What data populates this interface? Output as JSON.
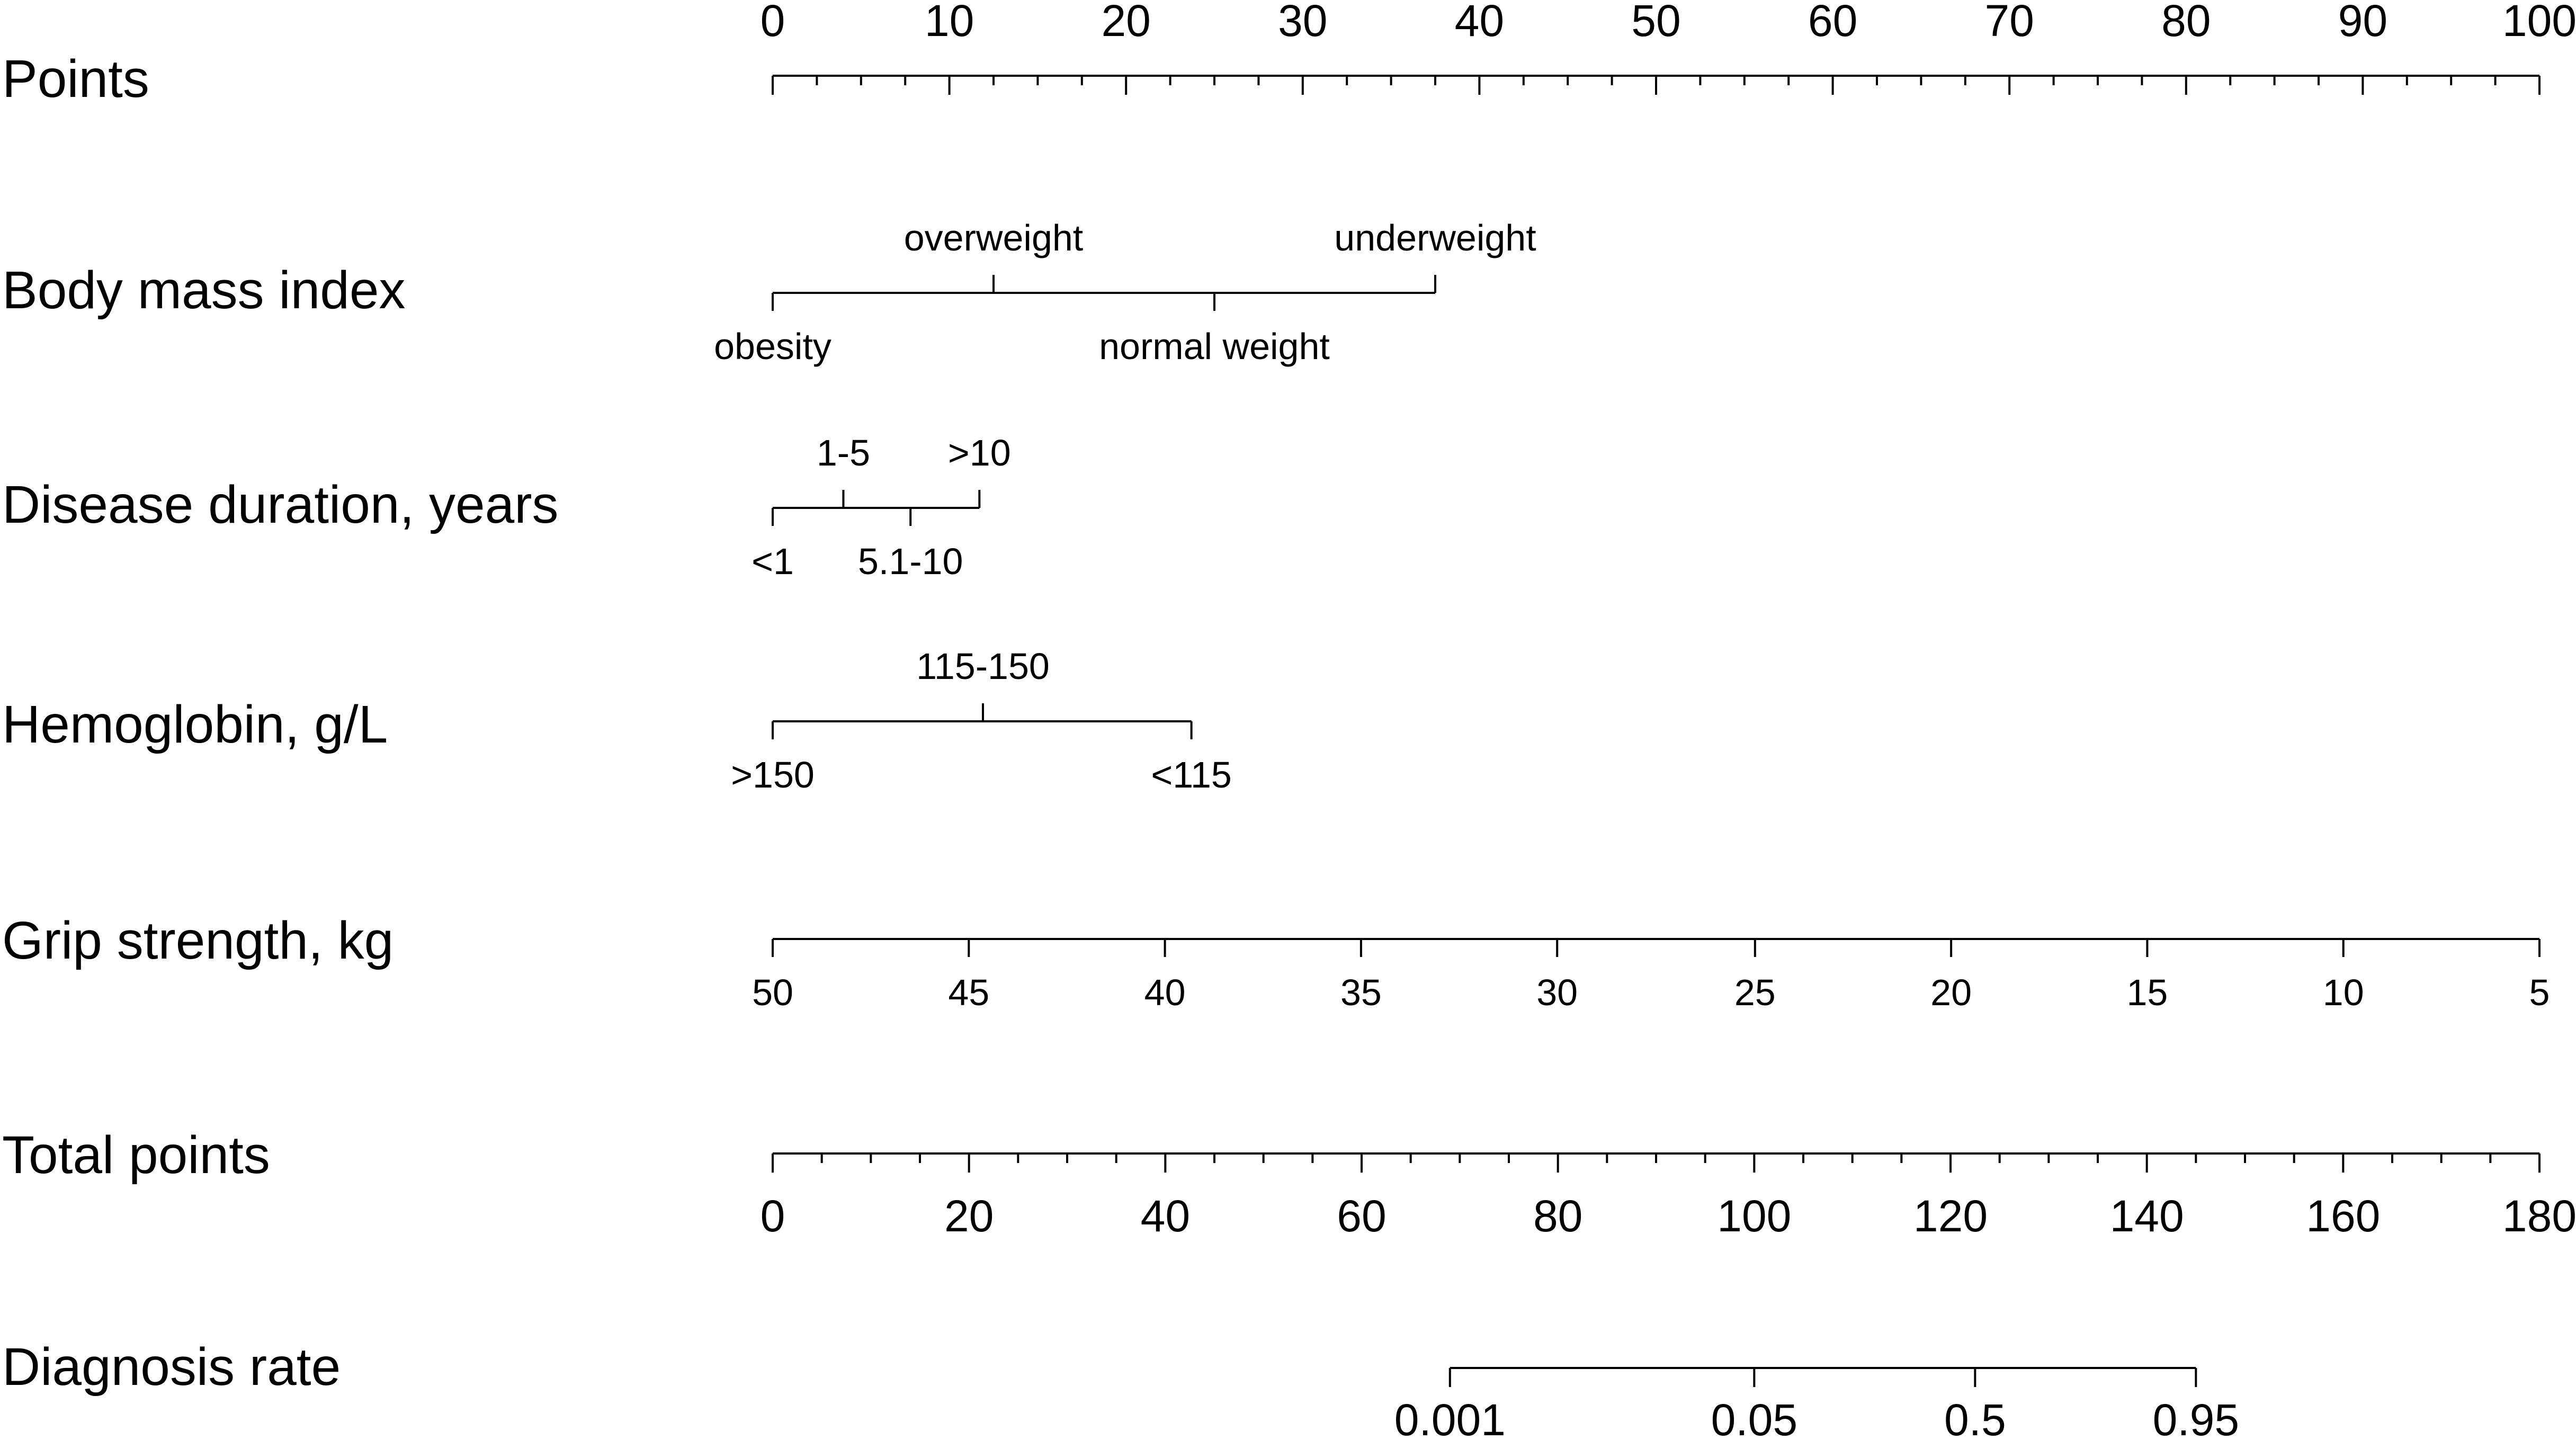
{
  "chart_data": {
    "type": "nomogram",
    "rows": [
      {
        "label": "Points",
        "scale": "linear",
        "ticks": [
          {
            "value": 0,
            "label": "0"
          },
          {
            "value": 10,
            "label": "10"
          },
          {
            "value": 20,
            "label": "20"
          },
          {
            "value": 30,
            "label": "30"
          },
          {
            "value": 40,
            "label": "40"
          },
          {
            "value": 50,
            "label": "50"
          },
          {
            "value": 60,
            "label": "60"
          },
          {
            "value": 70,
            "label": "70"
          },
          {
            "value": 80,
            "label": "80"
          },
          {
            "value": 90,
            "label": "90"
          },
          {
            "value": 100,
            "label": "100"
          }
        ],
        "minor_step": 2.5
      },
      {
        "label": "Body mass index",
        "levels": [
          {
            "category": "obesity",
            "points": 0
          },
          {
            "category": "overweight",
            "points": 12.5
          },
          {
            "category": "normal weight",
            "points": 25
          },
          {
            "category": "underweight",
            "points": 37.5
          }
        ]
      },
      {
        "label": "Disease duration, years",
        "levels": [
          {
            "category": "<1",
            "points": 0
          },
          {
            "category": "1-5",
            "points": 4
          },
          {
            "category": "5.1-10",
            "points": 7.8
          },
          {
            "category": ">10",
            "points": 11.7
          }
        ]
      },
      {
        "label": "Hemoglobin, g/L",
        "levels": [
          {
            "category": ">150",
            "points": 0
          },
          {
            "category": "115-150",
            "points": 11.9
          },
          {
            "category": "<115",
            "points": 23.7
          }
        ]
      },
      {
        "label": "Grip strength, kg",
        "levels": [
          {
            "category": "50",
            "points": 0
          },
          {
            "category": "45",
            "points": 11.1
          },
          {
            "category": "40",
            "points": 22.2
          },
          {
            "category": "35",
            "points": 33.3
          },
          {
            "category": "30",
            "points": 44.4
          },
          {
            "category": "25",
            "points": 55.6
          },
          {
            "category": "20",
            "points": 66.7
          },
          {
            "category": "15",
            "points": 77.8
          },
          {
            "category": "10",
            "points": 88.9
          },
          {
            "category": "5",
            "points": 100
          }
        ]
      },
      {
        "label": "Total points",
        "scale": "linear",
        "ticks": [
          {
            "value": 0,
            "label": "0"
          },
          {
            "value": 20,
            "label": "20"
          },
          {
            "value": 40,
            "label": "40"
          },
          {
            "value": 60,
            "label": "60"
          },
          {
            "value": 80,
            "label": "80"
          },
          {
            "value": 100,
            "label": "100"
          },
          {
            "value": 120,
            "label": "120"
          },
          {
            "value": 140,
            "label": "140"
          },
          {
            "value": 160,
            "label": "160"
          },
          {
            "value": 180,
            "label": "180"
          }
        ],
        "minor_step": 5,
        "range": [
          0,
          180
        ]
      },
      {
        "label": "Diagnosis rate",
        "levels": [
          {
            "probability": "0.001",
            "total_points": 69
          },
          {
            "probability": "0.05",
            "total_points": 100
          },
          {
            "probability": "0.5",
            "total_points": 122.5
          },
          {
            "probability": "0.95",
            "total_points": 145
          }
        ]
      }
    ]
  }
}
